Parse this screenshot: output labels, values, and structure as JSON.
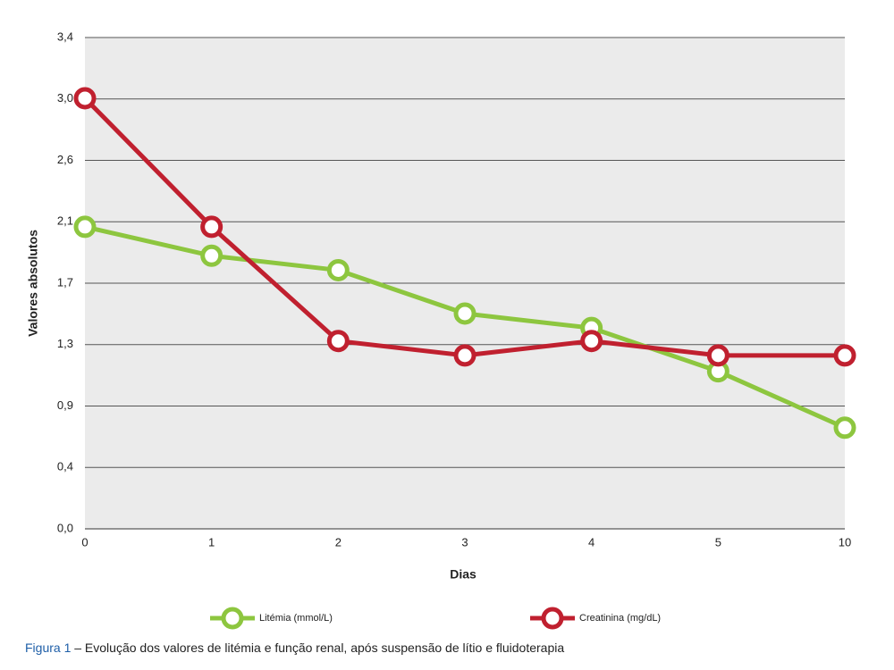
{
  "chart_data": {
    "type": "line",
    "x_label": "Dias",
    "y_label": "Valores absolutos",
    "categories": [
      "0",
      "1",
      "2",
      "3",
      "4",
      "5",
      "10"
    ],
    "series": [
      {
        "name": "Litémia (mmol/L)",
        "color": "#8dc63f",
        "values": [
          2.09,
          1.89,
          1.79,
          1.49,
          1.39,
          1.09,
          0.7
        ]
      },
      {
        "name": "Creatinina (mg/dL)",
        "color": "#c0202f",
        "values": [
          2.98,
          2.09,
          1.3,
          1.2,
          1.3,
          1.2,
          1.2
        ]
      }
    ],
    "ylim": [
      0,
      3.4
    ],
    "yticks": [
      {
        "value": 0,
        "label": "0,0"
      },
      {
        "value": 0.425,
        "label": "0,4"
      },
      {
        "value": 0.85,
        "label": "0,9"
      },
      {
        "value": 1.275,
        "label": "1,3"
      },
      {
        "value": 1.7,
        "label": "1,7"
      },
      {
        "value": 2.125,
        "label": "2,1"
      },
      {
        "value": 2.55,
        "label": "2,6"
      },
      {
        "value": 2.975,
        "label": "3,0"
      },
      {
        "value": 3.4,
        "label": "3,4"
      }
    ],
    "grid": true,
    "legend": "bottom",
    "caption_label": "Figura 1",
    "caption": "– Evolução dos valores de litémia e função renal, após suspensão de lítio e fluidoterapia"
  }
}
